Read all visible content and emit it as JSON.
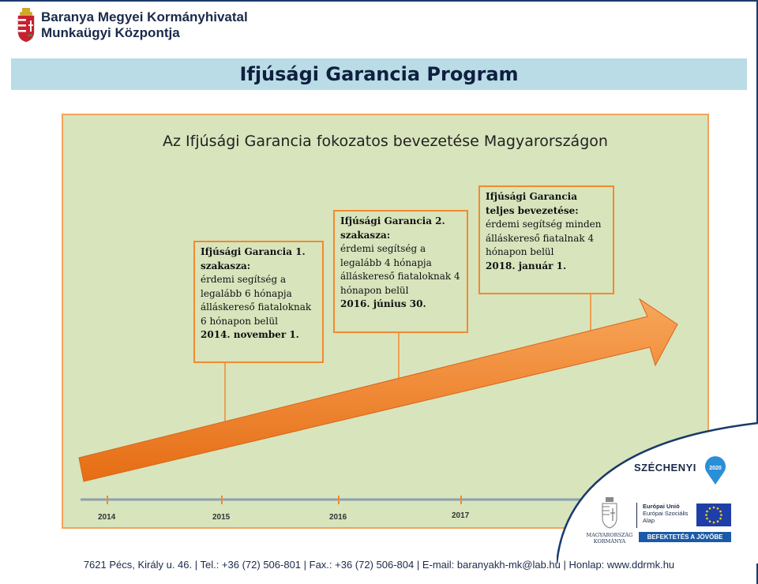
{
  "header": {
    "org_line1": "Baranya Megyei Kormányhivatal",
    "org_line2": "Munkaügyi Központja"
  },
  "banner": {
    "title": "Ifjúsági Garancia Program"
  },
  "slide": {
    "title": "Az Ifjúsági Garancia fokozatos bevezetése Magyarországon",
    "stages": [
      {
        "heading": "Ifjúsági Garancia 1. szakasza:",
        "body": "érdemi segítség a legalább 6 hónapja álláskereső fiataloknak 6 hónapon belül",
        "date": "2014. november 1."
      },
      {
        "heading": "Ifjúsági Garancia 2. szakasza:",
        "body": "érdemi segítség a legalább 4 hónapja álláskereső fiataloknak 4 hónapon belül",
        "date": "2016. június 30."
      },
      {
        "heading": "Ifjúsági Garancia teljes bevezetése:",
        "body": "érdemi segítség minden álláskereső fiatalnak 4 hónapon belül",
        "date": "2018. január 1."
      }
    ],
    "years": [
      "2014",
      "2015",
      "2016",
      "2017"
    ]
  },
  "logos": {
    "szechenyi": "SZÉCHENYI",
    "szechenyi_badge": "2020",
    "eu_line1": "Európai Unió",
    "eu_line2": "Európai Szociális",
    "eu_line3": "Alap",
    "gov_line1": "MAGYARORSZÁG",
    "gov_line2": "KORMÁNYA",
    "invest": "BEFEKTETÉS A JÖVŐBE"
  },
  "footer": {
    "text": "7621 Pécs, Király u. 46. | Tel.: +36 (72) 506-801 | Fax.: +36 (72) 506-804 | E-mail: baranyakh-mk@lab.hu | Honlap: www.ddrmk.hu"
  },
  "colors": {
    "banner_bg": "#b9dce6",
    "slide_bg": "#d8e4bc",
    "orange": "#f28a2e",
    "navy": "#1a2a4a",
    "eu_blue": "#1a5aa8"
  }
}
